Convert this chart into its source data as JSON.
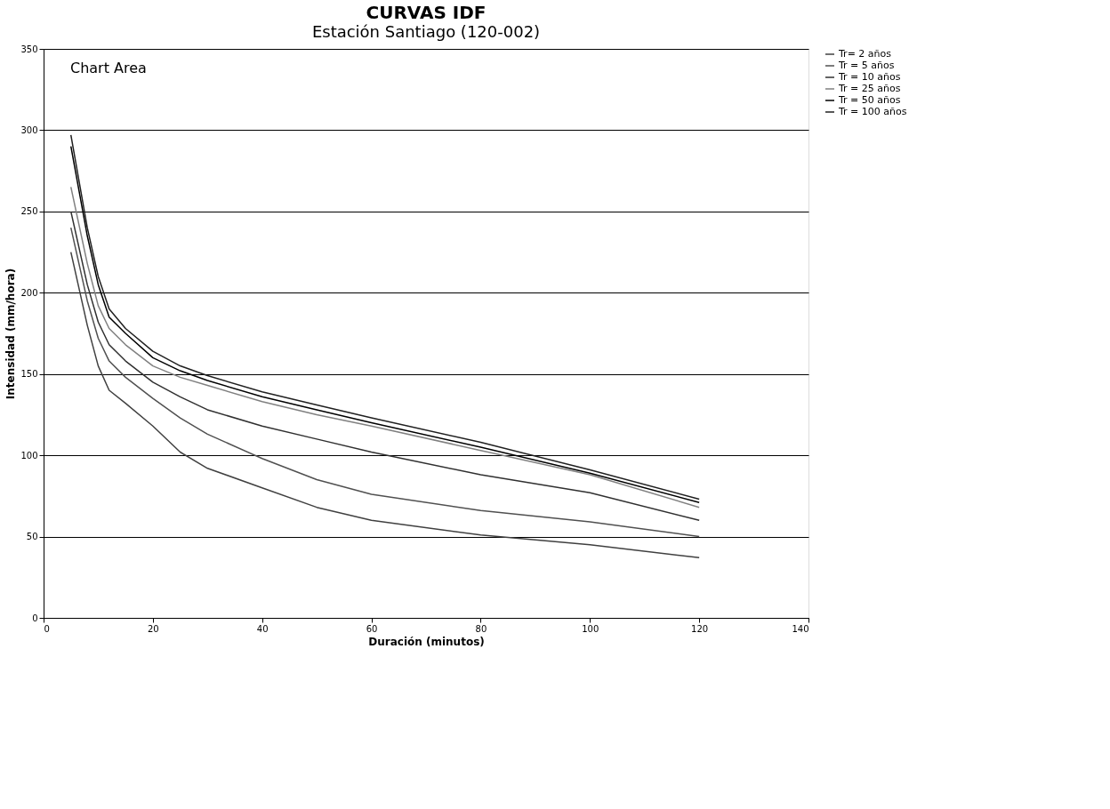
{
  "chart_data": {
    "type": "line",
    "title": "CURVAS IDF",
    "subtitle": "Estación Santiago (120-002)",
    "xlabel": "Duración (minutos)",
    "ylabel": "Intensidad (mm/hora)",
    "x": [
      5,
      8,
      10,
      12,
      15,
      20,
      25,
      30,
      40,
      50,
      60,
      80,
      100,
      120
    ],
    "series": [
      {
        "name": "Tr= 2 años",
        "color": "#404040",
        "values": [
          225,
          180,
          155,
          140,
          132,
          118,
          102,
          92,
          80,
          68,
          60,
          51,
          45,
          37
        ]
      },
      {
        "name": "Tr = 5 años",
        "color": "#505050",
        "values": [
          240,
          195,
          172,
          158,
          148,
          135,
          123,
          113,
          98,
          85,
          76,
          66,
          59,
          50
        ]
      },
      {
        "name": "Tr = 10 años",
        "color": "#303030",
        "values": [
          250,
          205,
          182,
          168,
          158,
          145,
          136,
          128,
          118,
          110,
          102,
          88,
          77,
          60
        ]
      },
      {
        "name": "Tr = 25 años",
        "color": "#808080",
        "values": [
          265,
          218,
          192,
          178,
          168,
          155,
          148,
          143,
          133,
          125,
          118,
          103,
          88,
          68
        ]
      },
      {
        "name": "Tr = 50 años",
        "color": "#000000",
        "values": [
          290,
          235,
          205,
          185,
          175,
          160,
          152,
          146,
          136,
          128,
          120,
          105,
          89,
          71
        ]
      },
      {
        "name": "Tr = 100 años",
        "color": "#202020",
        "values": [
          297,
          240,
          210,
          190,
          178,
          164,
          155,
          149,
          139,
          131,
          123,
          108,
          91,
          73
        ]
      }
    ],
    "xlim": [
      0,
      140
    ],
    "xticks": [
      0,
      20,
      40,
      60,
      80,
      100,
      120,
      140
    ],
    "ylim": [
      0,
      350
    ],
    "yticks": [
      0,
      50,
      100,
      150,
      200,
      250,
      300,
      350
    ],
    "grid": "y",
    "legend": "right",
    "marker": "none",
    "line_style": "solid",
    "annotations": [
      "Chart Area"
    ]
  }
}
